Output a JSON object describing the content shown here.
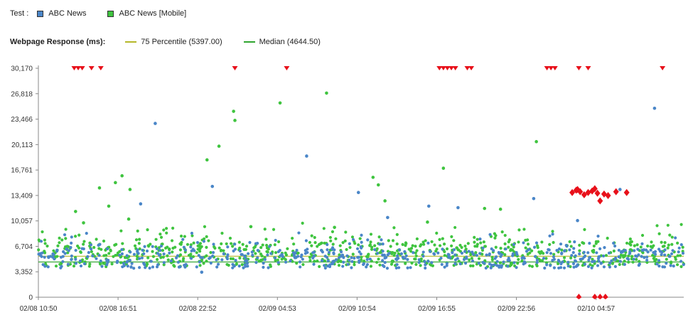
{
  "legend": {
    "test_label": "Test :",
    "tests": [
      {
        "name": "ABC News",
        "color": "#4a86c8"
      },
      {
        "name": "ABC News [Mobile]",
        "color": "#3fc43f"
      }
    ],
    "metric_label": "Webpage Response (ms):",
    "lines": [
      {
        "name": "75 Percentile (5397.00)",
        "color": "#b5b82a"
      },
      {
        "name": "Median (4644.50)",
        "color": "#2fa52f"
      }
    ]
  },
  "colors": {
    "error_marker": "#e8101a",
    "axis": "#888888"
  },
  "chart_data": {
    "type": "scatter",
    "ylabel": "",
    "xlabel": "",
    "ylim": [
      0,
      30170
    ],
    "y_ticks": [
      0,
      3352,
      6704,
      10057,
      13409,
      16761,
      20113,
      23466,
      26818,
      30170
    ],
    "y_tick_labels": [
      "0",
      "3,352",
      "6,704",
      "10,057",
      "13,409",
      "16,761",
      "20,113",
      "23,466",
      "26,818",
      "30,170"
    ],
    "x_tick_labels": [
      "02/08 10:50",
      "02/08 16:51",
      "02/08 22:52",
      "02/09 04:53",
      "02/09 10:54",
      "02/09 16:55",
      "02/09 22:56",
      "02/10 04:57"
    ],
    "x_tick_hours": [
      0,
      6,
      12,
      18,
      24,
      30,
      36,
      42
    ],
    "xlim_hours": [
      0,
      48.6
    ],
    "reference_lines": [
      {
        "name": "75 Percentile (5397.00)",
        "value": 5397.0
      },
      {
        "name": "Median (4644.50)",
        "value": 4644.5
      }
    ],
    "series": [
      {
        "name": "ABC News",
        "typical_range": [
          3400,
          6200
        ],
        "outliers": [
          [
            8.8,
            22900
          ],
          [
            7.7,
            12300
          ],
          [
            13.1,
            14600
          ],
          [
            20.2,
            18600
          ],
          [
            24.1,
            13800
          ],
          [
            26.3,
            10500
          ],
          [
            29.4,
            12000
          ],
          [
            31.6,
            11800
          ],
          [
            37.3,
            13000
          ],
          [
            43.8,
            14200
          ],
          [
            46.4,
            24900
          ],
          [
            12.3,
            3300
          ],
          [
            40.6,
            10100
          ]
        ]
      },
      {
        "name": "ABC News [Mobile]",
        "typical_range": [
          3500,
          7000
        ],
        "outliers": [
          [
            2.8,
            11300
          ],
          [
            4.6,
            14400
          ],
          [
            5.8,
            15100
          ],
          [
            6.3,
            16000
          ],
          [
            6.9,
            14200
          ],
          [
            12.7,
            18100
          ],
          [
            13.6,
            19900
          ],
          [
            14.7,
            24500
          ],
          [
            14.8,
            23300
          ],
          [
            18.2,
            25600
          ],
          [
            21.7,
            26900
          ],
          [
            25.2,
            15800
          ],
          [
            25.6,
            14800
          ],
          [
            26.1,
            12700
          ],
          [
            30.5,
            17000
          ],
          [
            33.6,
            11700
          ],
          [
            34.8,
            11600
          ],
          [
            37.5,
            20500
          ],
          [
            5.3,
            12000
          ],
          [
            6.8,
            10300
          ],
          [
            3.4,
            9800
          ],
          [
            16.0,
            9300
          ],
          [
            22.3,
            9200
          ],
          [
            29.3,
            9900
          ]
        ]
      }
    ],
    "errors": {
      "top_markers_hours": [
        2.7,
        3.0,
        3.3,
        4.0,
        4.7,
        14.8,
        18.7,
        30.2,
        30.5,
        30.8,
        31.1,
        31.4,
        32.3,
        32.6,
        38.3,
        38.6,
        38.9,
        40.7,
        41.4,
        47.0
      ],
      "cluster": [
        [
          40.2,
          13800
        ],
        [
          40.5,
          14100
        ],
        [
          40.8,
          13900
        ],
        [
          41.1,
          13500
        ],
        [
          41.4,
          13800
        ],
        [
          41.7,
          14000
        ],
        [
          42.1,
          13700
        ],
        [
          42.3,
          12700
        ],
        [
          42.6,
          13600
        ],
        [
          42.9,
          13400
        ],
        [
          43.5,
          13900
        ],
        [
          44.3,
          13800
        ],
        [
          40.6,
          14200
        ],
        [
          41.9,
          14300
        ]
      ],
      "bottom_markers_hours": [
        40.7,
        41.9,
        42.3,
        42.7
      ]
    }
  }
}
